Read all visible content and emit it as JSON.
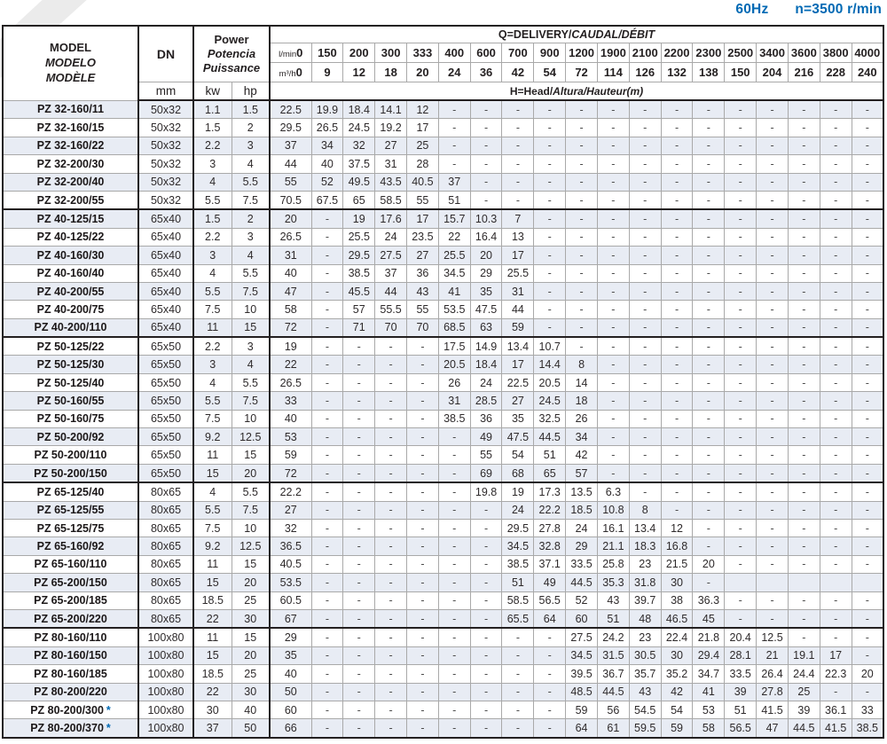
{
  "note": {
    "frequency": "60Hz",
    "speed": "n=3500 r/min"
  },
  "colors": {
    "accent_blue": "#0069b4",
    "row_shade": "#e8ecf4",
    "border_dark": "#231f20",
    "border_light": "#a9a9a9"
  },
  "table": {
    "model_header": {
      "en": "MODEL",
      "es": "MODELO",
      "fr": "MODÈLE"
    },
    "dn_header": {
      "label": "DN",
      "unit": "mm"
    },
    "power_header": {
      "en": "Power",
      "es": "Potencia",
      "fr": "Puissance",
      "kw": "kw",
      "hp": "hp"
    },
    "q_header": {
      "title_plain": "Q=DELIVERY/",
      "title_italic": "CAUDAL/DÉBIT",
      "lmin_label": "l/min",
      "lmin_zero": "0",
      "m3h_label": "m³/h",
      "m3h_zero": "0"
    },
    "h_header": {
      "plain": "H=Head/",
      "italic": "Altura/Hauteur(m)"
    },
    "lmin_values": [
      "150",
      "200",
      "300",
      "333",
      "400",
      "600",
      "700",
      "900",
      "1200",
      "1900",
      "2100",
      "2200",
      "2300",
      "2500",
      "3400",
      "3600",
      "3800",
      "4000"
    ],
    "m3h_values": [
      "9",
      "12",
      "18",
      "20",
      "24",
      "36",
      "42",
      "54",
      "72",
      "114",
      "126",
      "132",
      "138",
      "150",
      "204",
      "216",
      "228",
      "240"
    ],
    "rows": [
      {
        "model": "PZ 32-160/11",
        "star": false,
        "group_start": false,
        "dn": "50x32",
        "kw": "1.1",
        "hp": "1.5",
        "values": [
          "22.5",
          "19.9",
          "18.4",
          "14.1",
          "12",
          "-",
          "-",
          "-",
          "-",
          "-",
          "-",
          "-",
          "-",
          "-",
          "-",
          "-",
          "-",
          "-",
          "-"
        ]
      },
      {
        "model": "PZ 32-160/15",
        "star": false,
        "group_start": false,
        "dn": "50x32",
        "kw": "1.5",
        "hp": "2",
        "values": [
          "29.5",
          "26.5",
          "24.5",
          "19.2",
          "17",
          "-",
          "-",
          "-",
          "-",
          "-",
          "-",
          "-",
          "-",
          "-",
          "-",
          "-",
          "-",
          "-",
          "-"
        ]
      },
      {
        "model": "PZ 32-160/22",
        "star": false,
        "group_start": false,
        "dn": "50x32",
        "kw": "2.2",
        "hp": "3",
        "values": [
          "37",
          "34",
          "32",
          "27",
          "25",
          "-",
          "-",
          "-",
          "-",
          "-",
          "-",
          "-",
          "-",
          "-",
          "-",
          "-",
          "-",
          "-",
          "-"
        ]
      },
      {
        "model": "PZ 32-200/30",
        "star": false,
        "group_start": false,
        "dn": "50x32",
        "kw": "3",
        "hp": "4",
        "values": [
          "44",
          "40",
          "37.5",
          "31",
          "28",
          "-",
          "-",
          "-",
          "-",
          "-",
          "-",
          "-",
          "-",
          "-",
          "-",
          "-",
          "-",
          "-",
          "-"
        ]
      },
      {
        "model": "PZ 32-200/40",
        "star": false,
        "group_start": false,
        "dn": "50x32",
        "kw": "4",
        "hp": "5.5",
        "values": [
          "55",
          "52",
          "49.5",
          "43.5",
          "40.5",
          "37",
          "-",
          "-",
          "-",
          "-",
          "-",
          "-",
          "-",
          "-",
          "-",
          "-",
          "-",
          "-",
          "-"
        ]
      },
      {
        "model": "PZ 32-200/55",
        "star": false,
        "group_start": false,
        "dn": "50x32",
        "kw": "5.5",
        "hp": "7.5",
        "values": [
          "70.5",
          "67.5",
          "65",
          "58.5",
          "55",
          "51",
          "-",
          "-",
          "-",
          "-",
          "-",
          "-",
          "-",
          "-",
          "-",
          "-",
          "-",
          "-",
          "-"
        ]
      },
      {
        "model": "PZ 40-125/15",
        "star": false,
        "group_start": true,
        "dn": "65x40",
        "kw": "1.5",
        "hp": "2",
        "values": [
          "20",
          "-",
          "19",
          "17.6",
          "17",
          "15.7",
          "10.3",
          "7",
          "-",
          "-",
          "-",
          "-",
          "-",
          "-",
          "-",
          "-",
          "-",
          "-",
          "-"
        ]
      },
      {
        "model": "PZ 40-125/22",
        "star": false,
        "group_start": false,
        "dn": "65x40",
        "kw": "2.2",
        "hp": "3",
        "values": [
          "26.5",
          "-",
          "25.5",
          "24",
          "23.5",
          "22",
          "16.4",
          "13",
          "-",
          "-",
          "-",
          "-",
          "-",
          "-",
          "-",
          "-",
          "-",
          "-",
          "-"
        ]
      },
      {
        "model": "PZ 40-160/30",
        "star": false,
        "group_start": false,
        "dn": "65x40",
        "kw": "3",
        "hp": "4",
        "values": [
          "31",
          "-",
          "29.5",
          "27.5",
          "27",
          "25.5",
          "20",
          "17",
          "-",
          "-",
          "-",
          "-",
          "-",
          "-",
          "-",
          "-",
          "-",
          "-",
          "-"
        ]
      },
      {
        "model": "PZ 40-160/40",
        "star": false,
        "group_start": false,
        "dn": "65x40",
        "kw": "4",
        "hp": "5.5",
        "values": [
          "40",
          "-",
          "38.5",
          "37",
          "36",
          "34.5",
          "29",
          "25.5",
          "-",
          "-",
          "-",
          "-",
          "-",
          "-",
          "-",
          "-",
          "-",
          "-",
          "-"
        ]
      },
      {
        "model": "PZ 40-200/55",
        "star": false,
        "group_start": false,
        "dn": "65x40",
        "kw": "5.5",
        "hp": "7.5",
        "values": [
          "47",
          "-",
          "45.5",
          "44",
          "43",
          "41",
          "35",
          "31",
          "-",
          "-",
          "-",
          "-",
          "-",
          "-",
          "-",
          "-",
          "-",
          "-",
          "-"
        ]
      },
      {
        "model": "PZ 40-200/75",
        "star": false,
        "group_start": false,
        "dn": "65x40",
        "kw": "7.5",
        "hp": "10",
        "values": [
          "58",
          "-",
          "57",
          "55.5",
          "55",
          "53.5",
          "47.5",
          "44",
          "-",
          "-",
          "-",
          "-",
          "-",
          "-",
          "-",
          "-",
          "-",
          "-",
          "-"
        ]
      },
      {
        "model": "PZ 40-200/110",
        "star": false,
        "group_start": false,
        "dn": "65x40",
        "kw": "11",
        "hp": "15",
        "values": [
          "72",
          "-",
          "71",
          "70",
          "70",
          "68.5",
          "63",
          "59",
          "-",
          "-",
          "-",
          "-",
          "-",
          "-",
          "-",
          "-",
          "-",
          "-",
          "-"
        ]
      },
      {
        "model": "PZ 50-125/22",
        "star": false,
        "group_start": true,
        "dn": "65x50",
        "kw": "2.2",
        "hp": "3",
        "values": [
          "19",
          "-",
          "-",
          "-",
          "-",
          "17.5",
          "14.9",
          "13.4",
          "10.7",
          "-",
          "-",
          "-",
          "-",
          "-",
          "-",
          "-",
          "-",
          "-",
          "-"
        ]
      },
      {
        "model": "PZ 50-125/30",
        "star": false,
        "group_start": false,
        "dn": "65x50",
        "kw": "3",
        "hp": "4",
        "values": [
          "22",
          "-",
          "-",
          "-",
          "-",
          "20.5",
          "18.4",
          "17",
          "14.4",
          "8",
          "-",
          "-",
          "-",
          "-",
          "-",
          "-",
          "-",
          "-",
          "-"
        ]
      },
      {
        "model": "PZ 50-125/40",
        "star": false,
        "group_start": false,
        "dn": "65x50",
        "kw": "4",
        "hp": "5.5",
        "values": [
          "26.5",
          "-",
          "-",
          "-",
          "-",
          "26",
          "24",
          "22.5",
          "20.5",
          "14",
          "-",
          "-",
          "-",
          "-",
          "-",
          "-",
          "-",
          "-",
          "-"
        ]
      },
      {
        "model": "PZ 50-160/55",
        "star": false,
        "group_start": false,
        "dn": "65x50",
        "kw": "5.5",
        "hp": "7.5",
        "values": [
          "33",
          "-",
          "-",
          "-",
          "-",
          "31",
          "28.5",
          "27",
          "24.5",
          "18",
          "-",
          "-",
          "-",
          "-",
          "-",
          "-",
          "-",
          "-",
          "-"
        ]
      },
      {
        "model": "PZ 50-160/75",
        "star": false,
        "group_start": false,
        "dn": "65x50",
        "kw": "7.5",
        "hp": "10",
        "values": [
          "40",
          "-",
          "-",
          "-",
          "-",
          "38.5",
          "36",
          "35",
          "32.5",
          "26",
          "-",
          "-",
          "-",
          "-",
          "-",
          "-",
          "-",
          "-",
          "-"
        ]
      },
      {
        "model": "PZ 50-200/92",
        "star": false,
        "group_start": false,
        "dn": "65x50",
        "kw": "9.2",
        "hp": "12.5",
        "values": [
          "53",
          "-",
          "-",
          "-",
          "-",
          "-",
          "49",
          "47.5",
          "44.5",
          "34",
          "-",
          "-",
          "-",
          "-",
          "-",
          "-",
          "-",
          "-",
          "-"
        ]
      },
      {
        "model": "PZ 50-200/110",
        "star": false,
        "group_start": false,
        "dn": "65x50",
        "kw": "11",
        "hp": "15",
        "values": [
          "59",
          "-",
          "-",
          "-",
          "-",
          "-",
          "55",
          "54",
          "51",
          "42",
          "-",
          "-",
          "-",
          "-",
          "-",
          "-",
          "-",
          "-",
          "-"
        ]
      },
      {
        "model": "PZ 50-200/150",
        "star": false,
        "group_start": false,
        "dn": "65x50",
        "kw": "15",
        "hp": "20",
        "values": [
          "72",
          "-",
          "-",
          "-",
          "-",
          "-",
          "69",
          "68",
          "65",
          "57",
          "-",
          "-",
          "-",
          "-",
          "-",
          "-",
          "-",
          "-",
          "-"
        ]
      },
      {
        "model": "PZ 65-125/40",
        "star": false,
        "group_start": true,
        "dn": "80x65",
        "kw": "4",
        "hp": "5.5",
        "values": [
          "22.2",
          "-",
          "-",
          "-",
          "-",
          "-",
          "19.8",
          "19",
          "17.3",
          "13.5",
          "6.3",
          "-",
          "-",
          "-",
          "-",
          "-",
          "-",
          "-",
          "-"
        ]
      },
      {
        "model": "PZ 65-125/55",
        "star": false,
        "group_start": false,
        "dn": "80x65",
        "kw": "5.5",
        "hp": "7.5",
        "values": [
          "27",
          "-",
          "-",
          "-",
          "-",
          "-",
          "-",
          "24",
          "22.2",
          "18.5",
          "10.8",
          "8",
          "-",
          "-",
          "-",
          "-",
          "-",
          "-",
          "-"
        ]
      },
      {
        "model": "PZ 65-125/75",
        "star": false,
        "group_start": false,
        "dn": "80x65",
        "kw": "7.5",
        "hp": "10",
        "values": [
          "32",
          "-",
          "-",
          "-",
          "-",
          "-",
          "-",
          "29.5",
          "27.8",
          "24",
          "16.1",
          "13.4",
          "12",
          "-",
          "-",
          "-",
          "-",
          "-",
          "-"
        ]
      },
      {
        "model": "PZ 65-160/92",
        "star": false,
        "group_start": false,
        "dn": "80x65",
        "kw": "9.2",
        "hp": "12.5",
        "values": [
          "36.5",
          "-",
          "-",
          "-",
          "-",
          "-",
          "-",
          "34.5",
          "32.8",
          "29",
          "21.1",
          "18.3",
          "16.8",
          "-",
          "-",
          "-",
          "-",
          "-",
          "-"
        ]
      },
      {
        "model": "PZ 65-160/110",
        "star": false,
        "group_start": false,
        "dn": "80x65",
        "kw": "11",
        "hp": "15",
        "values": [
          "40.5",
          "-",
          "-",
          "-",
          "-",
          "-",
          "-",
          "38.5",
          "37.1",
          "33.5",
          "25.8",
          "23",
          "21.5",
          "20",
          "-",
          "-",
          "-",
          "-",
          "-"
        ]
      },
      {
        "model": "PZ 65-200/150",
        "star": false,
        "group_start": false,
        "dn": "80x65",
        "kw": "15",
        "hp": "20",
        "values": [
          "53.5",
          "-",
          "-",
          "-",
          "-",
          "-",
          "-",
          "51",
          "49",
          "44.5",
          "35.3",
          "31.8",
          "30",
          "-",
          "",
          "",
          "",
          "",
          ""
        ]
      },
      {
        "model": "PZ 65-200/185",
        "star": false,
        "group_start": false,
        "dn": "80x65",
        "kw": "18.5",
        "hp": "25",
        "values": [
          "60.5",
          "-",
          "-",
          "-",
          "-",
          "-",
          "-",
          "58.5",
          "56.5",
          "52",
          "43",
          "39.7",
          "38",
          "36.3",
          "-",
          "-",
          "-",
          "-",
          "-"
        ]
      },
      {
        "model": "PZ 65-200/220",
        "star": false,
        "group_start": false,
        "dn": "80x65",
        "kw": "22",
        "hp": "30",
        "values": [
          "67",
          "-",
          "-",
          "-",
          "-",
          "-",
          "-",
          "65.5",
          "64",
          "60",
          "51",
          "48",
          "46.5",
          "45",
          "-",
          "-",
          "-",
          "-",
          "-"
        ]
      },
      {
        "model": "PZ 80-160/110",
        "star": false,
        "group_start": true,
        "dn": "100x80",
        "kw": "11",
        "hp": "15",
        "values": [
          "29",
          "-",
          "-",
          "-",
          "-",
          "-",
          "-",
          "-",
          "-",
          "27.5",
          "24.2",
          "23",
          "22.4",
          "21.8",
          "20.4",
          "12.5",
          "-",
          "-",
          "-"
        ]
      },
      {
        "model": "PZ 80-160/150",
        "star": false,
        "group_start": false,
        "dn": "100x80",
        "kw": "15",
        "hp": "20",
        "values": [
          "35",
          "-",
          "-",
          "-",
          "-",
          "-",
          "-",
          "-",
          "-",
          "34.5",
          "31.5",
          "30.5",
          "30",
          "29.4",
          "28.1",
          "21",
          "19.1",
          "17",
          "-"
        ]
      },
      {
        "model": "PZ 80-160/185",
        "star": false,
        "group_start": false,
        "dn": "100x80",
        "kw": "18.5",
        "hp": "25",
        "values": [
          "40",
          "-",
          "-",
          "-",
          "-",
          "-",
          "-",
          "-",
          "-",
          "39.5",
          "36.7",
          "35.7",
          "35.2",
          "34.7",
          "33.5",
          "26.4",
          "24.4",
          "22.3",
          "20"
        ]
      },
      {
        "model": "PZ 80-200/220",
        "star": false,
        "group_start": false,
        "dn": "100x80",
        "kw": "22",
        "hp": "30",
        "values": [
          "50",
          "-",
          "-",
          "-",
          "-",
          "-",
          "-",
          "-",
          "-",
          "48.5",
          "44.5",
          "43",
          "42",
          "41",
          "39",
          "27.8",
          "25",
          "-",
          "-"
        ]
      },
      {
        "model": "PZ 80-200/300",
        "star": true,
        "group_start": false,
        "dn": "100x80",
        "kw": "30",
        "hp": "40",
        "values": [
          "60",
          "-",
          "-",
          "-",
          "-",
          "-",
          "-",
          "-",
          "-",
          "59",
          "56",
          "54.5",
          "54",
          "53",
          "51",
          "41.5",
          "39",
          "36.1",
          "33"
        ]
      },
      {
        "model": "PZ 80-200/370",
        "star": true,
        "group_start": false,
        "dn": "100x80",
        "kw": "37",
        "hp": "50",
        "values": [
          "66",
          "-",
          "-",
          "-",
          "-",
          "-",
          "-",
          "-",
          "-",
          "64",
          "61",
          "59.5",
          "59",
          "58",
          "56.5",
          "47",
          "44.5",
          "41.5",
          "38.5"
        ]
      }
    ]
  }
}
